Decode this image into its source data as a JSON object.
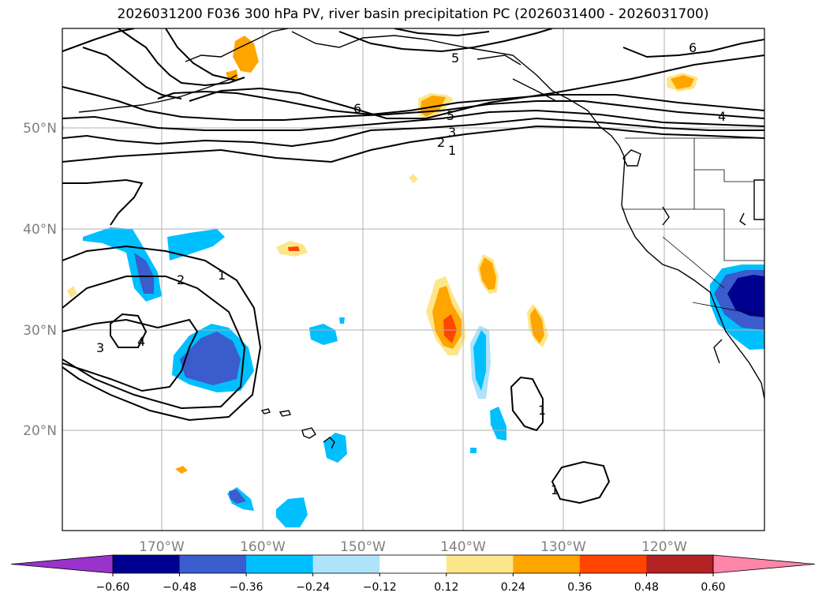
{
  "title": "2026031200 F036 300 hPa PV, river basin precipitation PC (2026031400 - 2026031700)",
  "map": {
    "lon_range": [
      -180,
      -110
    ],
    "lat_range": [
      10,
      60
    ],
    "lon_ticks": [
      "170°W",
      "160°W",
      "150°W",
      "140°W",
      "130°W",
      "120°W"
    ],
    "lat_ticks": [
      "50°N",
      "40°N",
      "30°N",
      "20°N"
    ],
    "pv_contour_labels": [
      "1",
      "2",
      "3",
      "4",
      "5",
      "6"
    ],
    "pv_contour_color": "#000000",
    "grid": true
  },
  "colorbar": {
    "tick_labels": [
      "−0.60",
      "−0.48",
      "−0.36",
      "−0.24",
      "−0.12",
      "0.12",
      "0.24",
      "0.36",
      "0.48",
      "0.60"
    ],
    "colors": [
      "#9933cc",
      "#000090",
      "#3a5ccc",
      "#00bfff",
      "#aee3fa",
      "#ffffff",
      "#fde68a",
      "#ffa500",
      "#ff4500",
      "#b22222",
      "#ff85a9"
    ],
    "extend": "both"
  }
}
